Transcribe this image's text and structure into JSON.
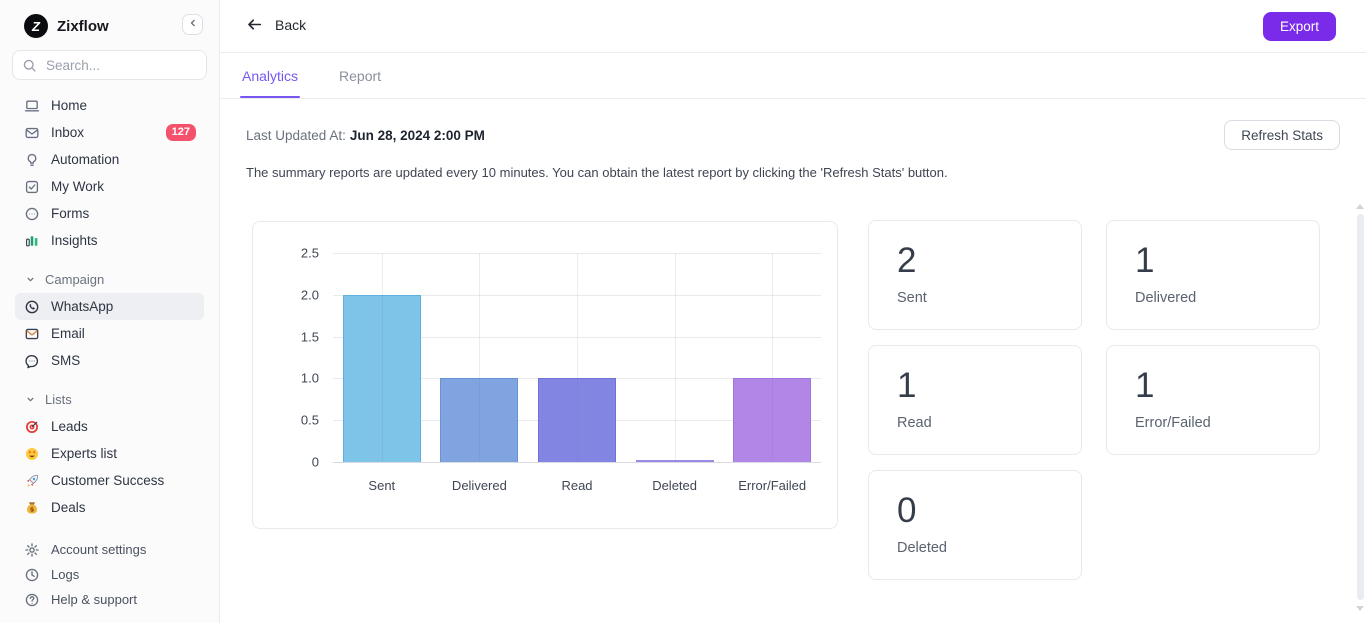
{
  "app": {
    "name": "Zixflow"
  },
  "colors": {
    "accent": "#7A2BEA",
    "tab_active": "#7857F0",
    "badge": "#F4516C"
  },
  "sidebar": {
    "search_placeholder": "Search...",
    "main_items": [
      {
        "label": "Home",
        "icon": "laptop-icon"
      },
      {
        "label": "Inbox",
        "icon": "envelope-icon",
        "badge": "127"
      },
      {
        "label": "Automation",
        "icon": "bulb-icon"
      },
      {
        "label": "My Work",
        "icon": "check-square-icon"
      },
      {
        "label": "Forms",
        "icon": "forms-circle-icon"
      },
      {
        "label": "Insights",
        "icon": "insights-bars-icon"
      }
    ],
    "sections": [
      {
        "label": "Campaign",
        "items": [
          {
            "label": "WhatsApp",
            "icon": "whatsapp-icon",
            "active": true
          },
          {
            "label": "Email",
            "icon": "email-icon"
          },
          {
            "label": "SMS",
            "icon": "sms-bubble-icon"
          }
        ]
      },
      {
        "label": "Lists",
        "items": [
          {
            "label": "Leads",
            "icon": "target-icon"
          },
          {
            "label": "Experts list",
            "icon": "star-struck-face-icon"
          },
          {
            "label": "Customer Success",
            "icon": "rocket-icon"
          },
          {
            "label": "Deals",
            "icon": "money-bag-icon"
          }
        ]
      }
    ],
    "footer_items": [
      {
        "label": "Account settings",
        "icon": "gear-icon"
      },
      {
        "label": "Logs",
        "icon": "clock-icon"
      },
      {
        "label": "Help & support",
        "icon": "help-icon"
      }
    ]
  },
  "header": {
    "back_label": "Back",
    "export_label": "Export"
  },
  "tabs": [
    {
      "label": "Analytics",
      "active": true
    },
    {
      "label": "Report",
      "active": false
    }
  ],
  "status": {
    "last_updated_label": "Last Updated At:",
    "last_updated_value": "Jun 28, 2024 2:00 PM",
    "refresh_button": "Refresh Stats",
    "info": "The summary reports are updated every 10 minutes. You can obtain the latest report by clicking the 'Refresh Stats' button."
  },
  "chart_data": {
    "type": "bar",
    "title": "",
    "categories": [
      "Sent",
      "Delivered",
      "Read",
      "Deleted",
      "Error/Failed"
    ],
    "values": [
      2,
      1,
      1,
      0,
      1
    ],
    "xlabel": "",
    "ylabel": "",
    "ylim": [
      0,
      2.5
    ],
    "yticks": [
      "2.5",
      "2.0",
      "1.5",
      "1.0",
      "0.5",
      "0"
    ],
    "grid": true,
    "legend": false,
    "bar_colors": [
      "#7EC3E8",
      "#7FA4E0",
      "#8285E2",
      "#9B8AE6",
      "#B186E7"
    ],
    "bar_border_colors": [
      "#5FB0DF",
      "#6A92D7",
      "#6F72D9",
      "#8E7CDF",
      "#A274DE"
    ]
  },
  "stat_cards": [
    {
      "value": "2",
      "label": "Sent"
    },
    {
      "value": "1",
      "label": "Delivered"
    },
    {
      "value": "1",
      "label": "Read"
    },
    {
      "value": "1",
      "label": "Error/Failed"
    },
    {
      "value": "0",
      "label": "Deleted"
    }
  ]
}
